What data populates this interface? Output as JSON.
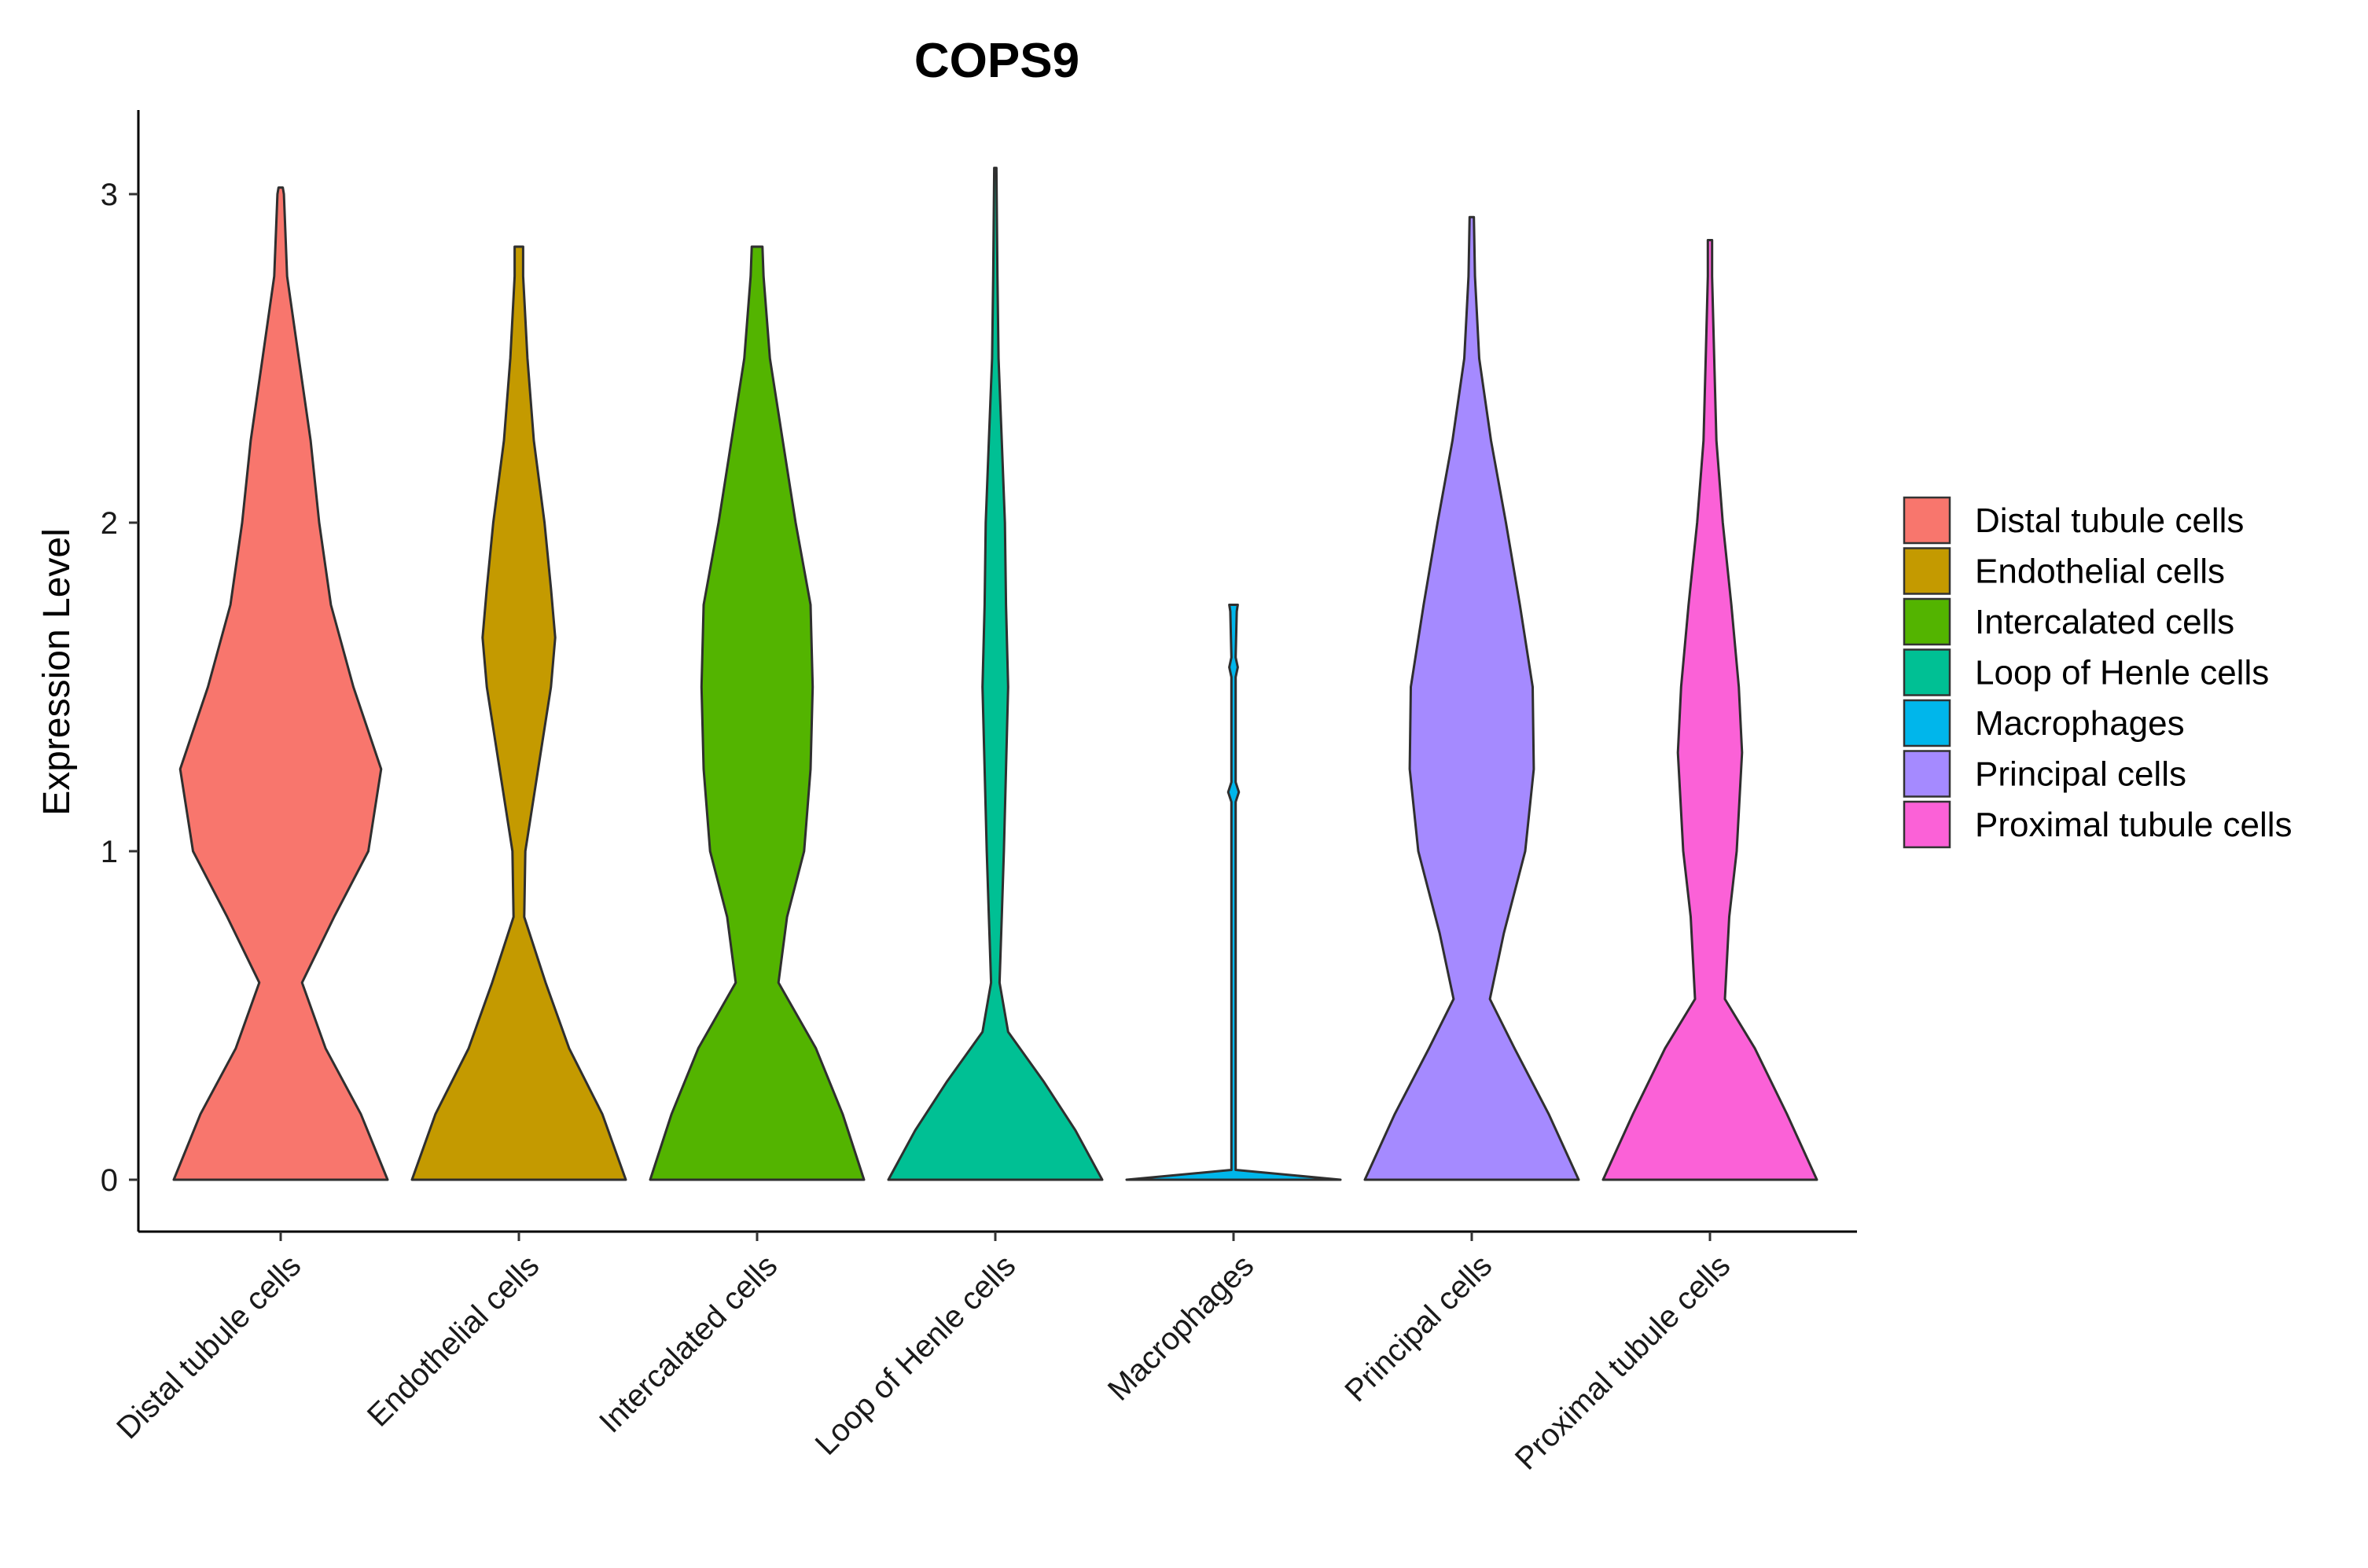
{
  "chart_data": {
    "type": "violin",
    "title": "COPS9",
    "xlabel": "",
    "ylabel": "Expression Level",
    "ylim": [
      -0.15,
      3.25
    ],
    "yticks": [
      0,
      1,
      2,
      3
    ],
    "ytick_labels": [
      "0",
      "1",
      "2",
      "3"
    ],
    "categories": [
      "Distal tubule cells",
      "Endothelial cells",
      "Intercalated cells",
      "Loop of Henle cells",
      "Macrophages",
      "Principal cells",
      "Proximal tubule cells"
    ],
    "colors": [
      "#F8766D",
      "#C49A00",
      "#53B400",
      "#00C094",
      "#00B6EB",
      "#A58AFF",
      "#FB61D7"
    ],
    "legend": {
      "position": "right",
      "entries": [
        "Distal tubule cells",
        "Endothelial cells",
        "Intercalated cells",
        "Loop of Henle cells",
        "Macrophages",
        "Principal cells",
        "Proximal tubule cells"
      ]
    },
    "series": [
      {
        "name": "Distal tubule cells",
        "max": 3.02,
        "density": [
          [
            0,
            1.0
          ],
          [
            0.2,
            0.75
          ],
          [
            0.4,
            0.42
          ],
          [
            0.6,
            0.2
          ],
          [
            0.8,
            0.5
          ],
          [
            1.0,
            0.82
          ],
          [
            1.25,
            0.94
          ],
          [
            1.5,
            0.68
          ],
          [
            1.75,
            0.47
          ],
          [
            2.0,
            0.36
          ],
          [
            2.25,
            0.28
          ],
          [
            2.5,
            0.17
          ],
          [
            2.75,
            0.06
          ],
          [
            3.0,
            0.03
          ],
          [
            3.02,
            0.02
          ]
        ]
      },
      {
        "name": "Endothelial cells",
        "max": 2.84,
        "density": [
          [
            0,
            1.0
          ],
          [
            0.2,
            0.78
          ],
          [
            0.4,
            0.47
          ],
          [
            0.6,
            0.25
          ],
          [
            0.8,
            0.05
          ],
          [
            1.0,
            0.06
          ],
          [
            1.25,
            0.18
          ],
          [
            1.5,
            0.3
          ],
          [
            1.65,
            0.34
          ],
          [
            1.8,
            0.3
          ],
          [
            2.0,
            0.24
          ],
          [
            2.25,
            0.14
          ],
          [
            2.5,
            0.08
          ],
          [
            2.75,
            0.04
          ],
          [
            2.84,
            0.04
          ]
        ]
      },
      {
        "name": "Intercalated cells",
        "max": 2.84,
        "density": [
          [
            0,
            1.0
          ],
          [
            0.2,
            0.8
          ],
          [
            0.4,
            0.55
          ],
          [
            0.6,
            0.2
          ],
          [
            0.8,
            0.28
          ],
          [
            1.0,
            0.44
          ],
          [
            1.25,
            0.5
          ],
          [
            1.5,
            0.52
          ],
          [
            1.75,
            0.5
          ],
          [
            2.0,
            0.36
          ],
          [
            2.25,
            0.24
          ],
          [
            2.5,
            0.12
          ],
          [
            2.75,
            0.06
          ],
          [
            2.84,
            0.05
          ]
        ]
      },
      {
        "name": "Loop of Henle cells",
        "max": 3.08,
        "density": [
          [
            0,
            1.0
          ],
          [
            0.15,
            0.75
          ],
          [
            0.3,
            0.45
          ],
          [
            0.45,
            0.12
          ],
          [
            0.6,
            0.04
          ],
          [
            0.8,
            0.06
          ],
          [
            1.0,
            0.08
          ],
          [
            1.25,
            0.1
          ],
          [
            1.5,
            0.12
          ],
          [
            1.75,
            0.1
          ],
          [
            2.0,
            0.09
          ],
          [
            2.25,
            0.06
          ],
          [
            2.5,
            0.03
          ],
          [
            2.75,
            0.02
          ],
          [
            3.08,
            0.01
          ]
        ]
      },
      {
        "name": "Macrophages",
        "max": 1.75,
        "density": [
          [
            0,
            1.0
          ],
          [
            0.03,
            0.02
          ],
          [
            1.15,
            0.02
          ],
          [
            1.18,
            0.05
          ],
          [
            1.21,
            0.02
          ],
          [
            1.53,
            0.02
          ],
          [
            1.56,
            0.04
          ],
          [
            1.59,
            0.02
          ],
          [
            1.73,
            0.03
          ],
          [
            1.75,
            0.04
          ]
        ]
      },
      {
        "name": "Principal cells",
        "max": 2.93,
        "density": [
          [
            0,
            1.0
          ],
          [
            0.2,
            0.72
          ],
          [
            0.4,
            0.4
          ],
          [
            0.55,
            0.17
          ],
          [
            0.75,
            0.3
          ],
          [
            1.0,
            0.5
          ],
          [
            1.25,
            0.58
          ],
          [
            1.5,
            0.57
          ],
          [
            1.75,
            0.45
          ],
          [
            2.0,
            0.32
          ],
          [
            2.25,
            0.18
          ],
          [
            2.5,
            0.07
          ],
          [
            2.75,
            0.03
          ],
          [
            2.93,
            0.02
          ]
        ]
      },
      {
        "name": "Proximal tubule cells",
        "max": 2.86,
        "density": [
          [
            0,
            1.0
          ],
          [
            0.2,
            0.72
          ],
          [
            0.4,
            0.42
          ],
          [
            0.55,
            0.14
          ],
          [
            0.8,
            0.18
          ],
          [
            1.0,
            0.25
          ],
          [
            1.3,
            0.3
          ],
          [
            1.5,
            0.27
          ],
          [
            1.75,
            0.2
          ],
          [
            2.0,
            0.12
          ],
          [
            2.25,
            0.06
          ],
          [
            2.5,
            0.04
          ],
          [
            2.75,
            0.02
          ],
          [
            2.86,
            0.02
          ]
        ]
      }
    ]
  }
}
